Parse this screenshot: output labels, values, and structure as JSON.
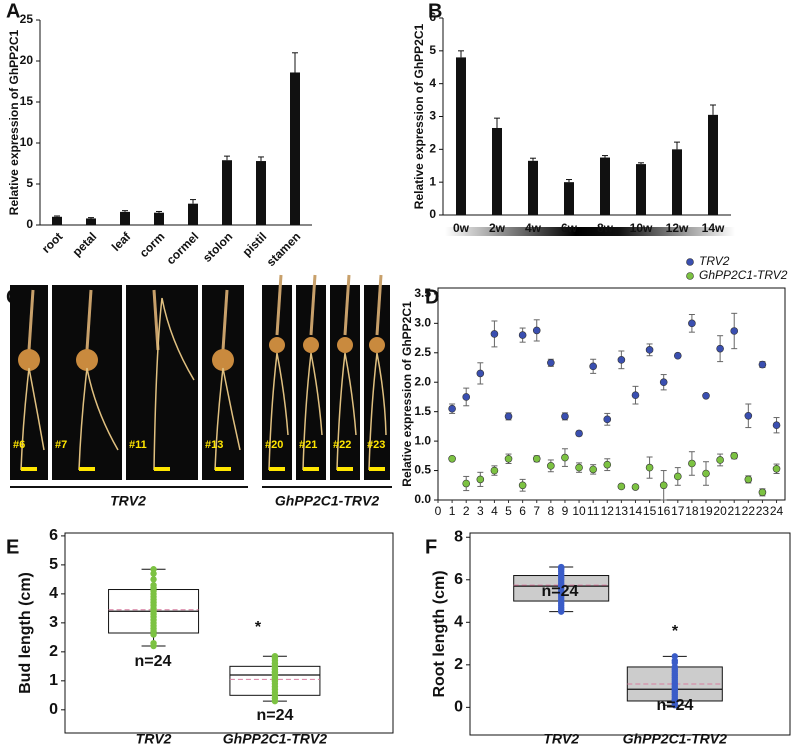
{
  "chart_data": [
    {
      "type": "bar",
      "label": "A",
      "ylabel": "Relative expression of GhPP2C1",
      "categories": [
        "root",
        "petal",
        "leaf",
        "corm",
        "cormel",
        "stolon",
        "pistil",
        "stamen"
      ],
      "values": [
        1.0,
        0.8,
        1.6,
        1.5,
        2.6,
        7.9,
        7.8,
        18.6
      ],
      "errors": [
        0.1,
        0.1,
        0.15,
        0.15,
        0.5,
        0.5,
        0.5,
        2.4
      ],
      "color": "#111111",
      "ylim": [
        0,
        25
      ],
      "yticks": [
        0,
        5,
        10,
        15,
        20,
        25
      ]
    },
    {
      "type": "bar",
      "label": "B",
      "ylabel": "Relative expression of GhPP2C1",
      "categories": [
        "0w",
        "2w",
        "4w",
        "6w",
        "8w",
        "10w",
        "12w",
        "14w"
      ],
      "values": [
        4.8,
        2.65,
        1.65,
        1.0,
        1.75,
        1.55,
        2.0,
        3.05
      ],
      "errors": [
        0.2,
        0.3,
        0.08,
        0.08,
        0.06,
        0.04,
        0.22,
        0.3
      ],
      "color": "#111111",
      "ylim": [
        0,
        6
      ],
      "yticks": [
        0,
        1,
        2,
        3,
        4,
        5,
        6
      ]
    },
    {
      "type": "scatter",
      "label": "D",
      "ylabel": "Relative expression of GhPP2C1",
      "x": [
        1,
        2,
        3,
        4,
        5,
        6,
        7,
        8,
        9,
        10,
        11,
        12,
        13,
        14,
        15,
        16,
        17,
        18,
        19,
        20,
        21,
        22,
        23,
        24
      ],
      "series": [
        {
          "name": "TRV2",
          "color": "#3a4fb0",
          "values": [
            1.55,
            1.75,
            2.15,
            2.82,
            1.42,
            2.8,
            2.88,
            2.33,
            1.42,
            1.13,
            2.27,
            1.37,
            2.38,
            1.78,
            2.55,
            2.0,
            2.45,
            3.0,
            1.77,
            2.57,
            2.87,
            1.43,
            2.3,
            1.27
          ],
          "errors": [
            0.08,
            0.15,
            0.18,
            0.22,
            0.06,
            0.12,
            0.18,
            0.06,
            0.06,
            0.04,
            0.12,
            0.1,
            0.15,
            0.15,
            0.1,
            0.13,
            0.03,
            0.15,
            0.02,
            0.22,
            0.3,
            0.2,
            0.05,
            0.13
          ]
        },
        {
          "name": "GhPP2C1-TRV2",
          "color": "#7cc242",
          "values": [
            0.7,
            0.28,
            0.35,
            0.5,
            0.7,
            0.25,
            0.7,
            0.58,
            0.72,
            0.55,
            0.52,
            0.6,
            0.23,
            0.22,
            0.55,
            0.25,
            0.4,
            0.62,
            0.45,
            0.68,
            0.75,
            0.35,
            0.13,
            0.53
          ],
          "errors": [
            0.03,
            0.12,
            0.12,
            0.08,
            0.08,
            0.1,
            0.05,
            0.1,
            0.15,
            0.08,
            0.08,
            0.1,
            0.03,
            0.02,
            0.18,
            0.25,
            0.15,
            0.2,
            0.2,
            0.1,
            0.05,
            0.06,
            0.06,
            0.08
          ]
        }
      ],
      "xlim": [
        0,
        24.6
      ],
      "xticks": [
        0,
        1,
        2,
        3,
        4,
        5,
        6,
        7,
        8,
        9,
        10,
        11,
        12,
        13,
        14,
        15,
        16,
        17,
        18,
        19,
        20,
        21,
        22,
        23,
        24
      ],
      "ylim": [
        0,
        3.6
      ],
      "yticks": [
        {
          "value": 0,
          "label": "0.0"
        },
        {
          "value": 0.5,
          "label": "0.5"
        },
        {
          "value": 1,
          "label": "1.0"
        },
        {
          "value": 1.5,
          "label": "1.5"
        },
        {
          "value": 2,
          "label": "2.0"
        },
        {
          "value": 2.5,
          "label": "2.5"
        },
        {
          "value": 3,
          "label": "3.0"
        },
        {
          "value": 3.5,
          "label": "3.5"
        }
      ],
      "legend": "upper right"
    },
    {
      "type": "box",
      "label": "E",
      "ylabel": "Bud length (cm)",
      "categories": [
        "TRV2",
        "GhPP2C1-TRV2"
      ],
      "boxes": [
        {
          "min": 2.2,
          "q1": 2.65,
          "median": 3.4,
          "q3": 4.15,
          "max": 4.85,
          "mean": 3.45,
          "points": [
            2.2,
            2.3,
            2.6,
            2.7,
            2.8,
            2.9,
            3.0,
            3.1,
            3.2,
            3.3,
            3.4,
            3.4,
            3.5,
            3.6,
            3.7,
            3.8,
            3.9,
            4.0,
            4.1,
            4.2,
            4.3,
            4.5,
            4.7,
            4.85
          ]
        },
        {
          "min": 0.3,
          "q1": 0.5,
          "median": 1.2,
          "q3": 1.5,
          "max": 1.85,
          "mean": 1.05,
          "points": [
            0.3,
            0.4,
            0.5,
            0.6,
            0.7,
            0.8,
            0.9,
            1.0,
            1.0,
            1.1,
            1.1,
            1.2,
            1.2,
            1.3,
            1.3,
            1.4,
            1.4,
            1.5,
            1.5,
            1.6,
            1.6,
            1.7,
            1.8,
            1.85
          ]
        }
      ],
      "box_fill": "#ffffff",
      "point_color": "#7cc242",
      "mean_color": "#d77fa1",
      "annotations": [
        "n=24",
        "n=24",
        "*"
      ],
      "ylim": [
        -0.8,
        6.1
      ],
      "yticks": [
        0,
        1,
        2,
        3,
        4,
        5,
        6
      ]
    },
    {
      "type": "box",
      "label": "F",
      "ylabel": "Root length (cm)",
      "categories": [
        "TRV2",
        "GhPP2C1-TRV2"
      ],
      "boxes": [
        {
          "min": 4.5,
          "q1": 5.0,
          "median": 5.7,
          "q3": 6.2,
          "max": 6.6,
          "mean": 5.75,
          "points": [
            4.5,
            4.6,
            4.7,
            4.8,
            4.9,
            5.0,
            5.1,
            5.2,
            5.3,
            5.4,
            5.5,
            5.6,
            5.7,
            5.7,
            5.8,
            5.9,
            6.0,
            6.1,
            6.2,
            6.3,
            6.4,
            6.5,
            6.55,
            6.6
          ]
        },
        {
          "min": 0.1,
          "q1": 0.3,
          "median": 0.85,
          "q3": 1.9,
          "max": 2.4,
          "mean": 1.1,
          "points": [
            0.1,
            0.2,
            0.3,
            0.35,
            0.4,
            0.5,
            0.6,
            0.7,
            0.8,
            0.85,
            0.9,
            1.0,
            1.1,
            1.2,
            1.3,
            1.4,
            1.5,
            1.6,
            1.7,
            1.8,
            1.9,
            2.1,
            2.2,
            2.4
          ]
        }
      ],
      "box_fill": "#cccccc",
      "point_color": "#3a5cc8",
      "mean_color": "#d77fa1",
      "annotations": [
        "n=24",
        "n=24",
        "*"
      ],
      "ylim": [
        -1.3,
        8.2
      ],
      "yticks": [
        0,
        2,
        4,
        6,
        8
      ]
    }
  ],
  "photo_panel": {
    "label": "C",
    "plants": [
      "#6",
      "#7",
      "#11",
      "#13",
      "#20",
      "#21",
      "#22",
      "#23"
    ],
    "groups": [
      "TRV2",
      "GhPP2C1-TRV2"
    ]
  }
}
